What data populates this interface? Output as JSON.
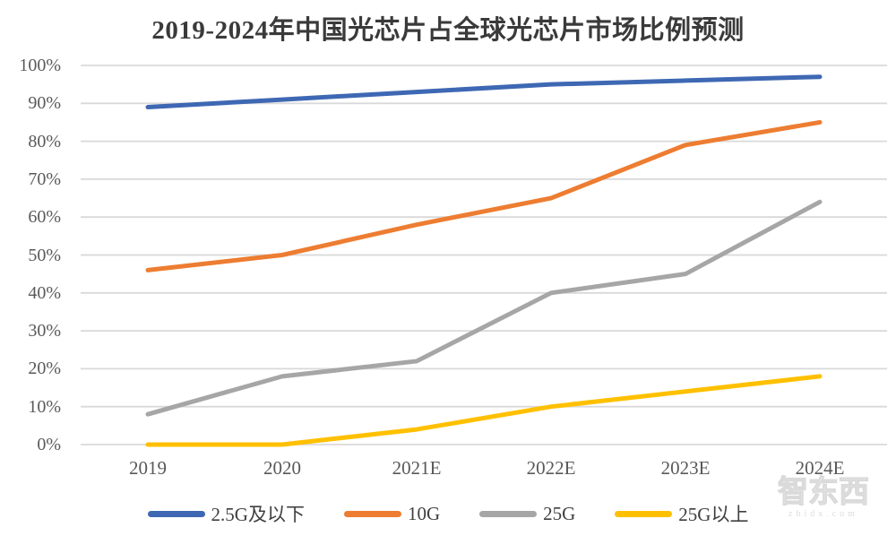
{
  "title": "2019-2024年中国光芯片占全球光芯片市场比例预测",
  "watermark": {
    "brand": "智东西",
    "domain": "zhidx.com"
  },
  "colors": {
    "blue": "#3E68B3",
    "orange": "#ED7D31",
    "gray": "#A6A6A6",
    "yellow": "#FFC000",
    "gridline": "#D9D9D9",
    "axis_text": "#595959",
    "title_text": "#3A3A3A"
  },
  "chart_data": {
    "type": "line",
    "title": "2019-2024年中国光芯片占全球光芯片市场比例预测",
    "categories": [
      "2019",
      "2020",
      "2021E",
      "2022E",
      "2023E",
      "2024E"
    ],
    "series": [
      {
        "name": "2.5G及以下",
        "color": "#3E68B3",
        "values": [
          89,
          91,
          93,
          95,
          96,
          97
        ]
      },
      {
        "name": "10G",
        "color": "#ED7D31",
        "values": [
          46,
          50,
          58,
          65,
          79,
          85
        ]
      },
      {
        "name": "25G",
        "color": "#A6A6A6",
        "values": [
          8,
          18,
          22,
          40,
          45,
          64
        ]
      },
      {
        "name": "25G以上",
        "color": "#FFC000",
        "values": [
          0,
          0,
          4,
          10,
          14,
          18
        ]
      }
    ],
    "y_ticks": [
      "100%",
      "90%",
      "80%",
      "70%",
      "60%",
      "50%",
      "40%",
      "30%",
      "20%",
      "10%",
      "0%"
    ],
    "ylim": [
      0,
      100
    ],
    "y_tick_step": 10,
    "grid": true,
    "legend_position": "bottom",
    "unit": "%"
  }
}
